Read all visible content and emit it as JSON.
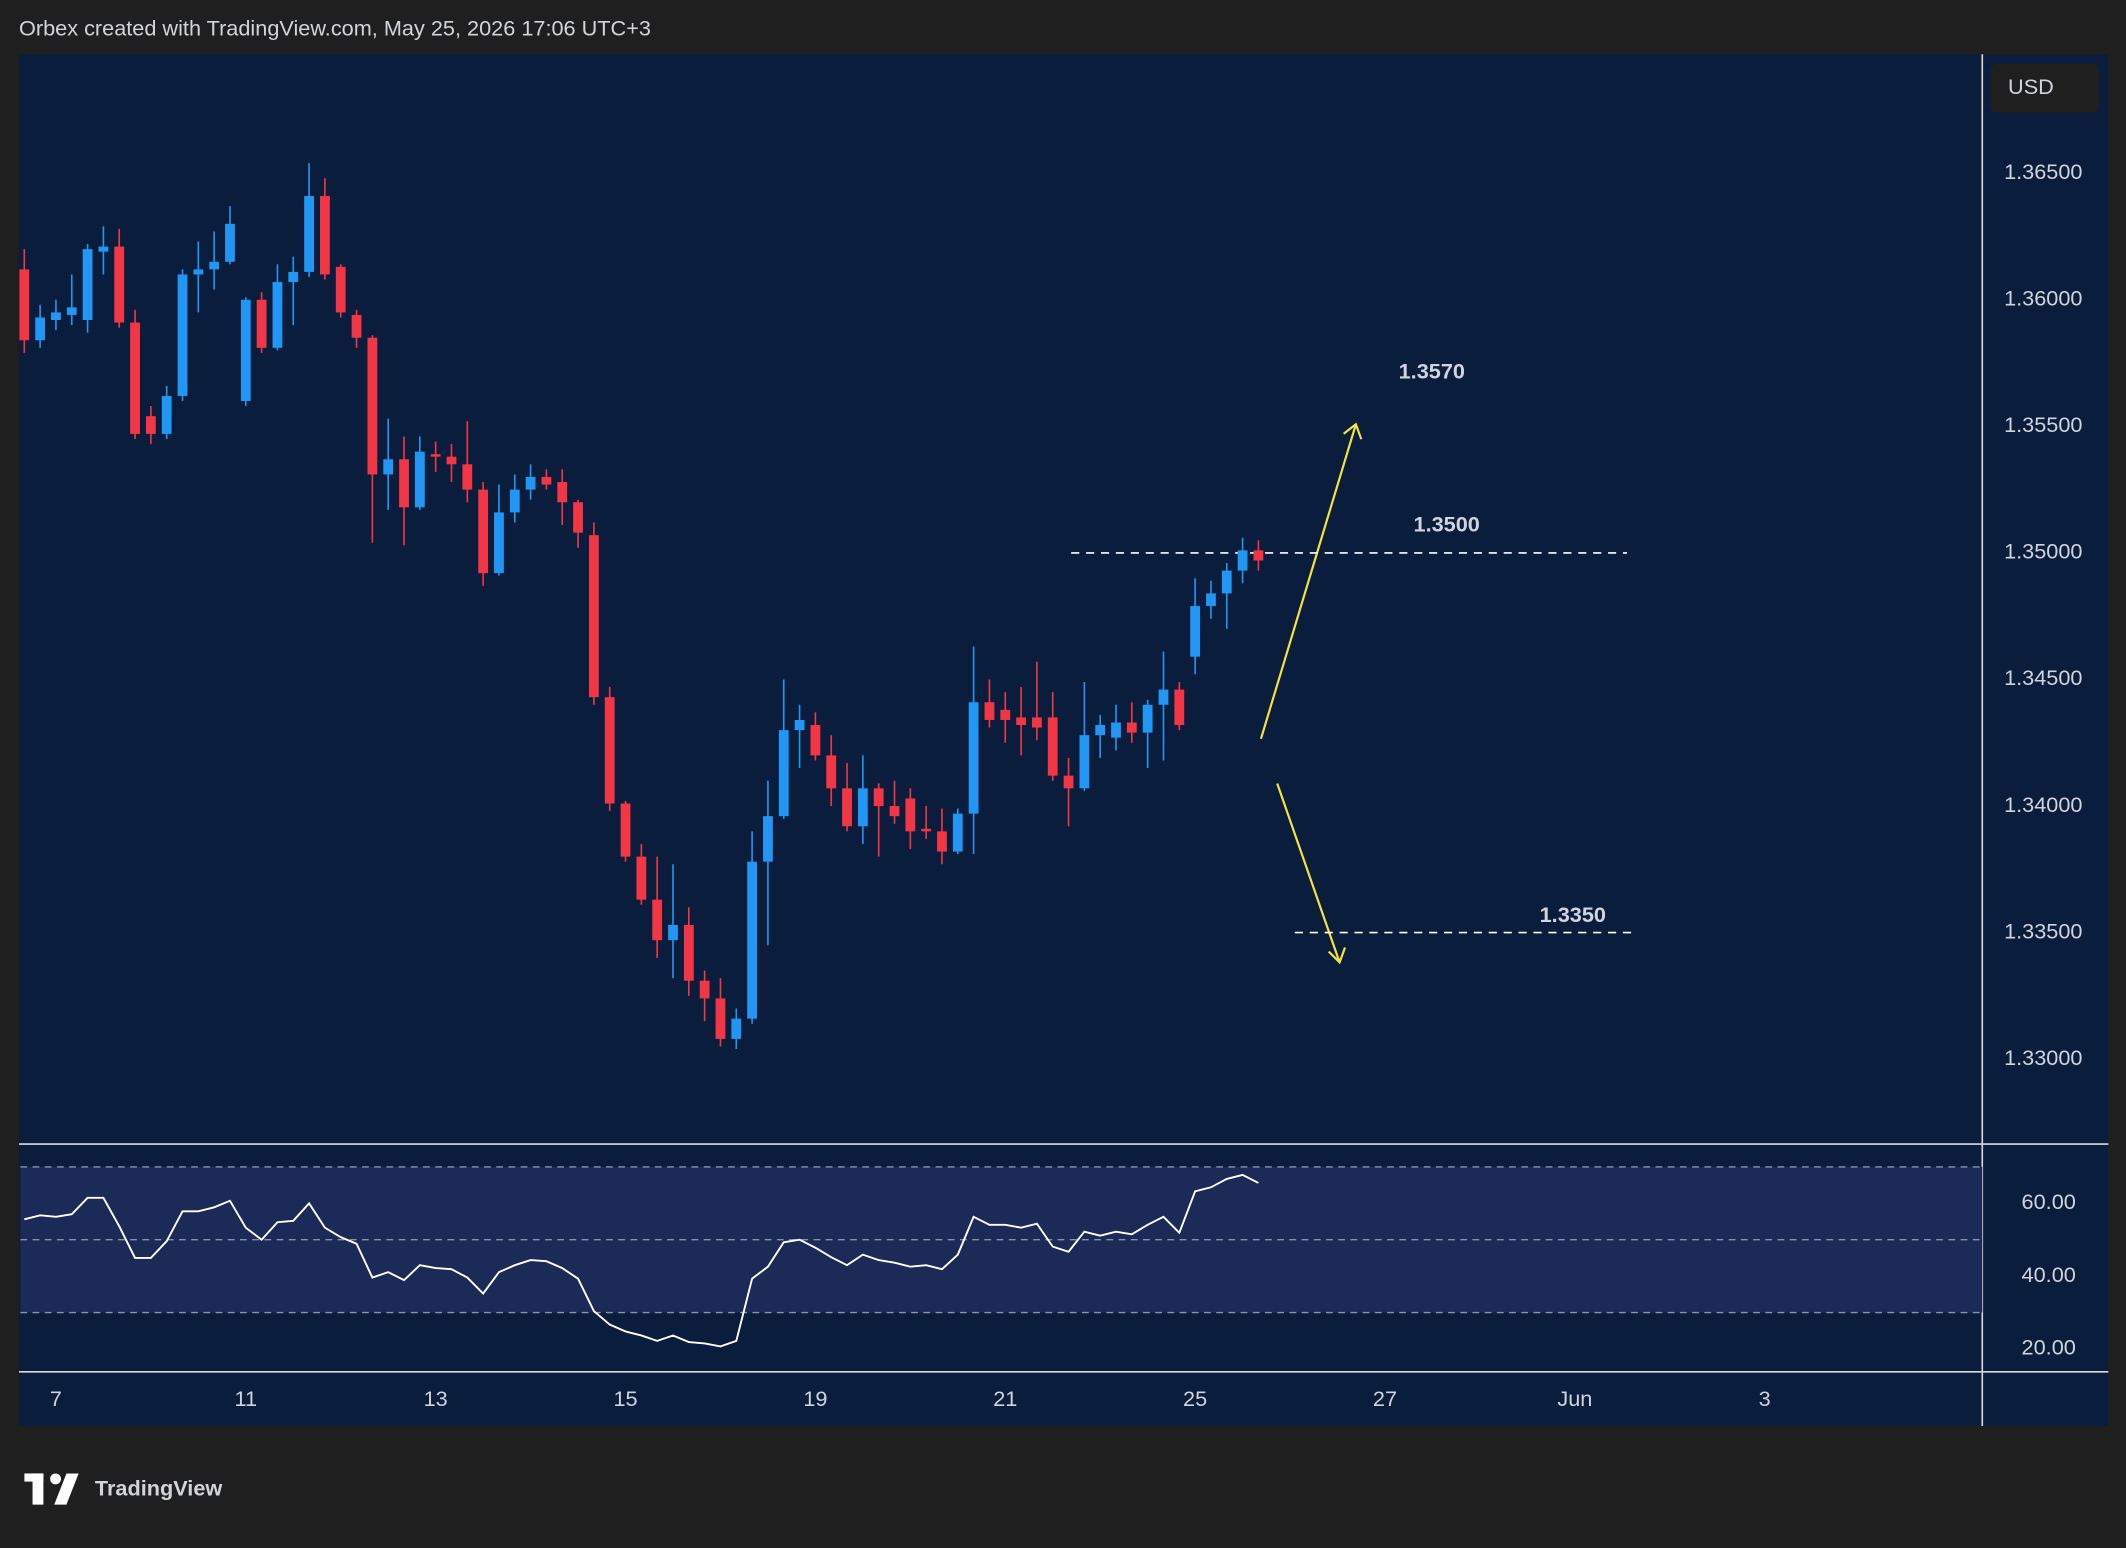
{
  "header": "Orbex created with TradingView.com, May 25, 2026 17:06 UTC+3",
  "brand": "TradingView",
  "chart_data": {
    "type": "candlestick",
    "currency": "USD",
    "up_color": "#2196f3",
    "down_color": "#f23645",
    "candles": {
      "open": [
        1.3612,
        1.3584,
        1.3592,
        1.3594,
        1.3592,
        1.3619,
        1.3621,
        1.3591,
        1.3554,
        1.3547,
        1.3562,
        1.361,
        1.3612,
        1.3615,
        1.356,
        1.36,
        1.3581,
        1.3607,
        1.3611,
        1.3641,
        1.3613,
        1.3594,
        1.3585,
        1.3531,
        1.3537,
        1.3518,
        1.3539,
        1.3538,
        1.3535,
        1.3525,
        1.3492,
        1.3516,
        1.3525,
        1.353,
        1.3528,
        1.352,
        1.3507,
        1.3443,
        1.3401,
        1.338,
        1.3363,
        1.3347,
        1.3353,
        1.3331,
        1.3324,
        1.3308,
        1.3316,
        1.3378,
        1.3396,
        1.343,
        1.3432,
        1.342,
        1.3407,
        1.3392,
        1.3407,
        1.34,
        1.3403,
        1.3391,
        1.339,
        1.3382,
        1.3397,
        1.3441,
        1.3438,
        1.3435,
        1.3435,
        1.3435,
        1.3412,
        1.3407,
        1.3428,
        1.3427,
        1.3433,
        1.3429,
        1.344,
        1.3446,
        1.3459,
        1.3479,
        1.3484,
        1.3493,
        1.3501
      ],
      "high": [
        1.362,
        1.3598,
        1.36,
        1.361,
        1.3622,
        1.3629,
        1.3628,
        1.3596,
        1.3558,
        1.3566,
        1.3612,
        1.3623,
        1.3627,
        1.3637,
        1.3601,
        1.3603,
        1.3614,
        1.3617,
        1.3654,
        1.3648,
        1.3614,
        1.3596,
        1.3586,
        1.3553,
        1.3546,
        1.3546,
        1.3544,
        1.3543,
        1.3552,
        1.3528,
        1.3527,
        1.3531,
        1.3535,
        1.3533,
        1.3533,
        1.3521,
        1.3512,
        1.3447,
        1.3402,
        1.3385,
        1.338,
        1.3377,
        1.336,
        1.3335,
        1.3332,
        1.332,
        1.339,
        1.341,
        1.345,
        1.344,
        1.3437,
        1.3428,
        1.3417,
        1.342,
        1.3409,
        1.341,
        1.3407,
        1.34,
        1.3399,
        1.3399,
        1.3463,
        1.345,
        1.3445,
        1.3447,
        1.3457,
        1.3445,
        1.3419,
        1.3449,
        1.3436,
        1.344,
        1.3441,
        1.3442,
        1.3461,
        1.3449,
        1.349,
        1.3489,
        1.3496,
        1.3506,
        1.3505
      ],
      "low": [
        1.3579,
        1.3581,
        1.3588,
        1.359,
        1.3587,
        1.361,
        1.3589,
        1.3545,
        1.3543,
        1.3545,
        1.356,
        1.3595,
        1.3604,
        1.3614,
        1.3558,
        1.3579,
        1.358,
        1.359,
        1.3609,
        1.3608,
        1.3593,
        1.3581,
        1.3504,
        1.3517,
        1.3503,
        1.3517,
        1.3532,
        1.3528,
        1.352,
        1.3487,
        1.3491,
        1.3512,
        1.3521,
        1.3525,
        1.3511,
        1.3502,
        1.344,
        1.3398,
        1.3378,
        1.3361,
        1.334,
        1.3332,
        1.3325,
        1.3315,
        1.3305,
        1.3304,
        1.3314,
        1.3345,
        1.3395,
        1.3415,
        1.3418,
        1.34,
        1.339,
        1.3385,
        1.338,
        1.3393,
        1.3383,
        1.3387,
        1.3377,
        1.3381,
        1.3381,
        1.3431,
        1.3425,
        1.342,
        1.3426,
        1.341,
        1.3392,
        1.3406,
        1.3419,
        1.3422,
        1.3425,
        1.3415,
        1.3418,
        1.343,
        1.3452,
        1.3474,
        1.347,
        1.3488,
        1.3493
      ],
      "close": [
        1.3584,
        1.3593,
        1.3595,
        1.3597,
        1.362,
        1.3621,
        1.3591,
        1.3547,
        1.3547,
        1.3562,
        1.361,
        1.3612,
        1.3615,
        1.363,
        1.36,
        1.3581,
        1.3607,
        1.3611,
        1.3641,
        1.361,
        1.3595,
        1.3585,
        1.3531,
        1.3537,
        1.3518,
        1.354,
        1.3538,
        1.3535,
        1.3525,
        1.3492,
        1.3516,
        1.3525,
        1.353,
        1.3527,
        1.352,
        1.3508,
        1.3443,
        1.3401,
        1.338,
        1.3363,
        1.3347,
        1.3353,
        1.3331,
        1.3324,
        1.3308,
        1.3316,
        1.3378,
        1.3396,
        1.343,
        1.3434,
        1.342,
        1.3407,
        1.3392,
        1.3407,
        1.34,
        1.3396,
        1.339,
        1.339,
        1.3382,
        1.3397,
        1.3441,
        1.3434,
        1.3434,
        1.3432,
        1.3431,
        1.3412,
        1.3407,
        1.3428,
        1.3432,
        1.3433,
        1.3429,
        1.344,
        1.3446,
        1.3432,
        1.3479,
        1.3484,
        1.3493,
        1.3501,
        1.3497
      ]
    },
    "xlim": [
      -0.25,
      123.75
    ],
    "xticks": [
      {
        "value": 2,
        "label": "7"
      },
      {
        "value": 14,
        "label": "11"
      },
      {
        "value": 26,
        "label": "13"
      },
      {
        "value": 38,
        "label": "15"
      },
      {
        "value": 50,
        "label": "19"
      },
      {
        "value": 62,
        "label": "21"
      },
      {
        "value": 74,
        "label": "25"
      },
      {
        "value": 86,
        "label": "27"
      },
      {
        "value": 98,
        "label": "Jun"
      },
      {
        "value": 110,
        "label": "3"
      }
    ],
    "ylim": [
      1.3267,
      1.3697
    ],
    "yticks": [
      {
        "value": 1.365,
        "label": "1.36500"
      },
      {
        "value": 1.36,
        "label": "1.36000"
      },
      {
        "value": 1.355,
        "label": "1.35500"
      },
      {
        "value": 1.35,
        "label": "1.35000"
      },
      {
        "value": 1.345,
        "label": "1.34500"
      },
      {
        "value": 1.34,
        "label": "1.34000"
      },
      {
        "value": 1.335,
        "label": "1.33500"
      },
      {
        "value": 1.33,
        "label": "1.33000"
      }
    ],
    "grid": false,
    "levels": [
      {
        "value": 1.35,
        "label": "1.3500"
      },
      {
        "value": 1.335,
        "label": "1.3350"
      }
    ],
    "target_label": "1.3570",
    "rsi": {
      "type": "line",
      "color": "#ffffff",
      "values": [
        55.6,
        56.7,
        56.3,
        57,
        61.5,
        61.5,
        53.7,
        45,
        45,
        49.6,
        57.8,
        57.8,
        58.9,
        60.7,
        53.3,
        50,
        54.8,
        55.2,
        60,
        53.3,
        50.7,
        48.9,
        39.6,
        41.1,
        38.9,
        43,
        42.2,
        41.9,
        39.6,
        35.2,
        41.1,
        43,
        44.4,
        44.1,
        42.2,
        39.3,
        30.4,
        26.7,
        24.8,
        23.7,
        22.2,
        23.7,
        21.9,
        21.5,
        20.7,
        22.2,
        39.3,
        42.6,
        49.3,
        50,
        47.8,
        45.2,
        43,
        45.9,
        44.4,
        43.7,
        42.6,
        43,
        41.9,
        45.9,
        56.3,
        54.1,
        54.1,
        53.3,
        54.4,
        48.1,
        46.7,
        52.2,
        51.1,
        52.2,
        51.5,
        54.1,
        56.3,
        51.9,
        63.3,
        64.4,
        66.7,
        67.8,
        65.6
      ],
      "ylim": [
        14.1,
        75.9
      ],
      "yticks": [
        {
          "value": 60,
          "label": "60.00"
        },
        {
          "value": 40,
          "label": "40.00"
        },
        {
          "value": 20,
          "label": "20.00"
        }
      ],
      "bands": [
        70,
        50,
        30
      ]
    }
  }
}
